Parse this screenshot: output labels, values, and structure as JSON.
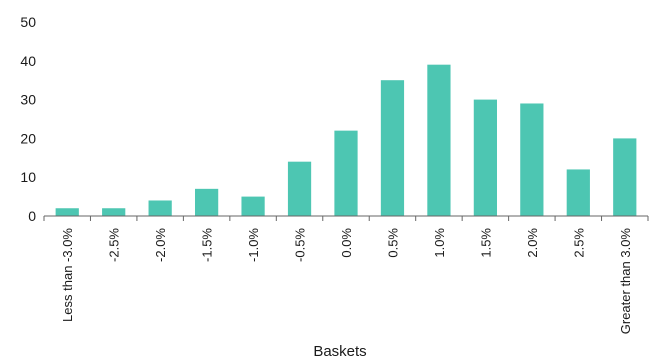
{
  "chart_data": {
    "type": "bar",
    "title": "",
    "xlabel": "Baskets",
    "ylabel": "",
    "ylim": [
      0,
      50
    ],
    "yticks": [
      0,
      10,
      20,
      30,
      40,
      50
    ],
    "grid": false,
    "bar_color": "#4dc6b2",
    "categories": [
      "Less than -3.0%",
      "-2.5%",
      "-2.0%",
      "-1.5%",
      "-1.0%",
      "-0.5%",
      "0.0%",
      "0.5%",
      "1.0%",
      "1.5%",
      "2.0%",
      "2.5%",
      "Greater than 3.0%"
    ],
    "values": [
      2,
      2,
      4,
      7,
      5,
      14,
      22,
      35,
      39,
      30,
      29,
      12,
      20
    ]
  }
}
